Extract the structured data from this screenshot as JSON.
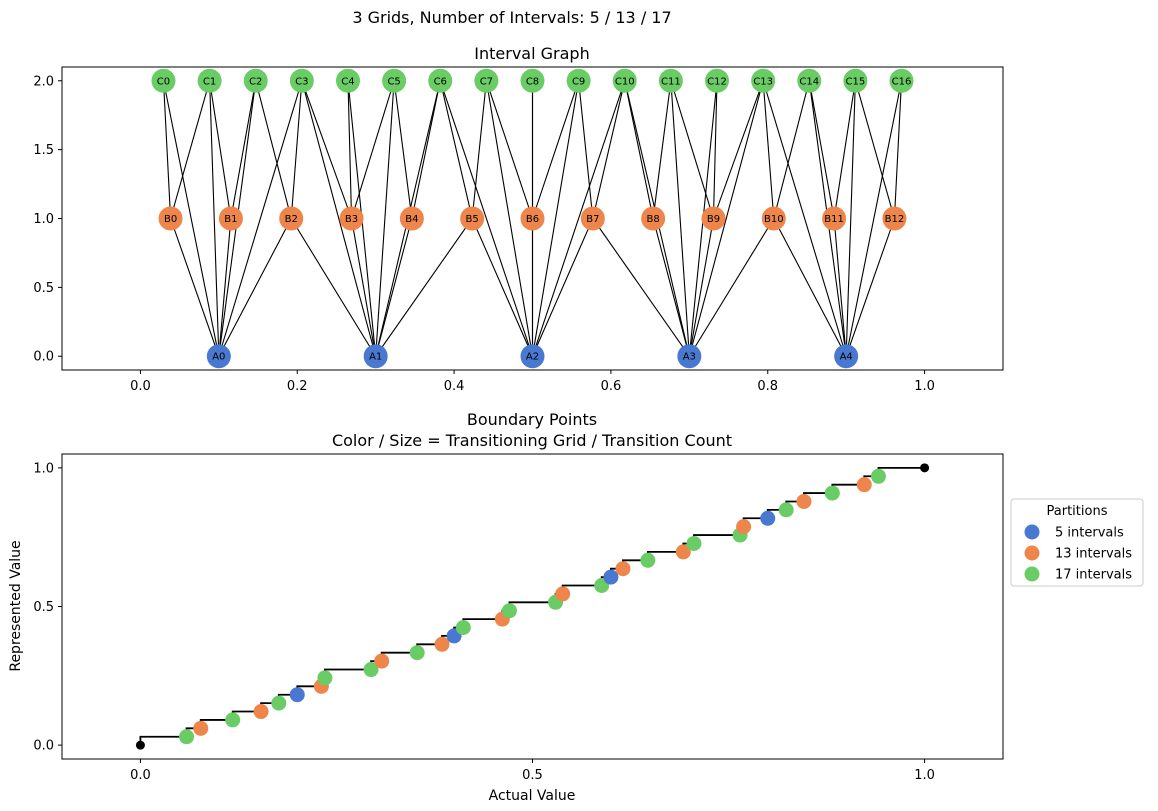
{
  "suptitle": "3 Grids, Number of Intervals: 5 / 13 / 17",
  "colors": {
    "grid1": "#4878cf",
    "grid2": "#ee854a",
    "grid3": "#6acc64",
    "edge": "#000000",
    "step": "#000000"
  },
  "chart_data": [
    {
      "type": "network",
      "title": "Interval Graph",
      "xlim": [
        -0.1,
        1.1
      ],
      "ylim": [
        -0.1,
        2.1
      ],
      "x_ticks": [
        "0.0",
        "0.2",
        "0.4",
        "0.6",
        "0.8",
        "1.0"
      ],
      "y_ticks": [
        "0.0",
        "0.5",
        "1.0",
        "1.5",
        "2.0"
      ],
      "x_tick_values": [
        0,
        0.2,
        0.4,
        0.6,
        0.8,
        1.0
      ],
      "y_tick_values": [
        0,
        0.5,
        1.0,
        1.5,
        2.0
      ],
      "levels": [
        {
          "grid": "grid1",
          "y": 0,
          "intervals": 5,
          "nodes": [
            "A0",
            "A1",
            "A2",
            "A3",
            "A4"
          ]
        },
        {
          "grid": "grid2",
          "y": 1,
          "intervals": 13,
          "nodes": [
            "B0",
            "B1",
            "B2",
            "B3",
            "B4",
            "B5",
            "B6",
            "B7",
            "B8",
            "B9",
            "B10",
            "B11",
            "B12"
          ]
        },
        {
          "grid": "grid3",
          "y": 2,
          "intervals": 17,
          "nodes": [
            "C0",
            "C1",
            "C2",
            "C3",
            "C4",
            "C5",
            "C6",
            "C7",
            "C8",
            "C9",
            "C10",
            "C11",
            "C12",
            "C13",
            "C14",
            "C15",
            "C16"
          ]
        }
      ]
    },
    {
      "type": "scatter",
      "title": "Boundary Points",
      "subtitle": "Color / Size = Transitioning Grid / Transition Count",
      "xlabel": "Actual Value",
      "ylabel": "Represented Value",
      "xlim": [
        -0.1,
        1.1
      ],
      "ylim": [
        -0.05,
        1.05
      ],
      "x_ticks": [
        "0.0",
        "0.5",
        "1.0"
      ],
      "y_ticks": [
        "0.0",
        "0.5",
        "1.0"
      ],
      "x_tick_values": [
        0,
        0.5,
        1.0
      ],
      "y_tick_values": [
        0,
        0.5,
        1.0
      ],
      "legend_title": "Partitions",
      "legend_position": "outside right",
      "series": [
        {
          "name": "5 intervals",
          "grid": "grid1",
          "intervals": 5
        },
        {
          "name": "13 intervals",
          "grid": "grid2",
          "intervals": 13
        },
        {
          "name": "17 intervals",
          "grid": "grid3",
          "intervals": 17
        }
      ],
      "endpoints": [
        [
          0,
          0
        ],
        [
          1,
          1
        ]
      ]
    }
  ]
}
